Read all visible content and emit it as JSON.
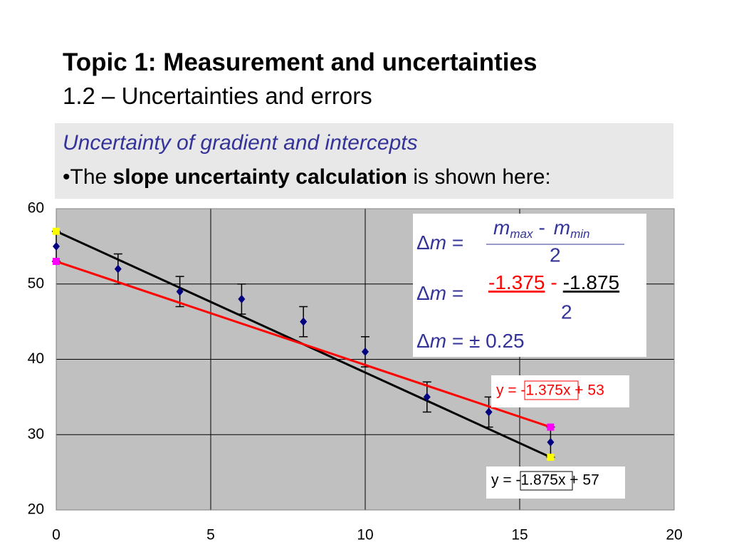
{
  "header": {
    "title": "Topic 1: Measurement and uncertainties",
    "subtitle": "1.2 – Uncertainties and errors"
  },
  "box": {
    "heading": "Uncertainty of gradient and intercepts",
    "bullet": {
      "before": "The ",
      "bold": "slope uncertainty calculation",
      "after": " is shown here:"
    }
  },
  "formula": {
    "delta": "Δ",
    "m": "m",
    "eq": "=",
    "line1": {
      "sub_a": "max",
      "op": "-",
      "sub_b": "min",
      "den": "2"
    },
    "line2": {
      "a": "-1.375",
      "op": "-",
      "b": "-1.875",
      "den": "2"
    },
    "line3": "± 0.25"
  },
  "chart_data": {
    "type": "scatter",
    "xlim": [
      0,
      20
    ],
    "ylim": [
      20,
      60
    ],
    "xticks": [
      0,
      5,
      10,
      15,
      20
    ],
    "yticks": [
      20,
      30,
      40,
      50,
      60
    ],
    "grid": true,
    "points": {
      "color": "#000080",
      "x": [
        0,
        2,
        4,
        6,
        8,
        10,
        12,
        14,
        16
      ],
      "values": [
        55,
        52,
        49,
        48,
        45,
        41,
        35,
        33,
        29
      ],
      "errors": [
        2,
        2,
        2,
        2,
        2,
        2,
        2,
        2,
        2
      ]
    },
    "lines": [
      {
        "color": "#000000",
        "marker_color": "#ffff00",
        "x": [
          0,
          16
        ],
        "values": [
          57,
          27
        ]
      },
      {
        "color": "#ff0000",
        "marker_color": "#ff00ff",
        "x": [
          0,
          16
        ],
        "values": [
          53,
          31
        ]
      }
    ],
    "annotations": [
      "y = -1.375x + 53",
      "y = -1.875x + 57"
    ]
  }
}
